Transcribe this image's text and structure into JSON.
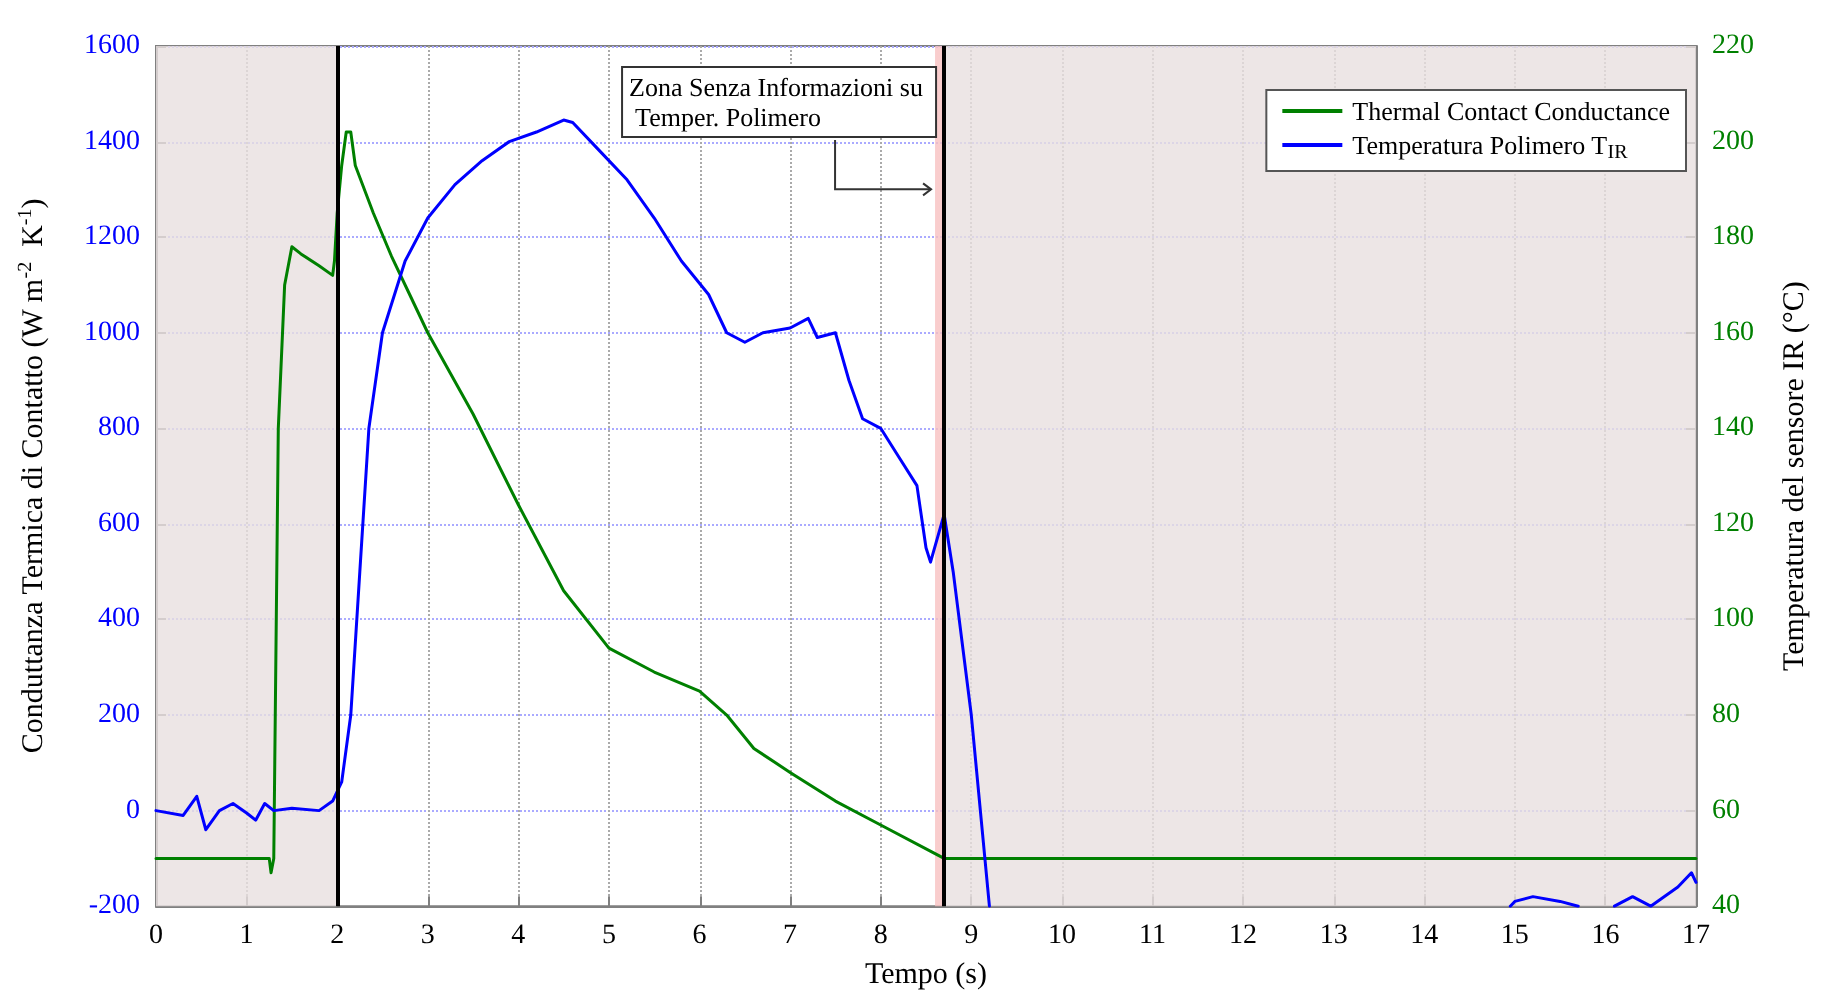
{
  "chart_data": {
    "type": "line",
    "xlabel": "Tempo (s)",
    "ylabel": "Conduttanza Termica di Contatto (W m$^{-2}$  K$^{-1}$)",
    "y2label": "Temperatura del sensore IR (°C)",
    "xlim": [
      0,
      17
    ],
    "xticks": [
      0,
      1,
      2,
      3,
      4,
      5,
      6,
      7,
      8,
      9,
      10,
      11,
      12,
      13,
      14,
      15,
      16,
      17
    ],
    "ylim": [
      -200,
      1600
    ],
    "yticks": [
      -200,
      0,
      200,
      400,
      600,
      800,
      1000,
      1200,
      1400,
      1600
    ],
    "y2lim": [
      40,
      220
    ],
    "y2ticks": [
      40,
      60,
      80,
      100,
      120,
      140,
      160,
      180,
      200,
      220
    ],
    "grid": true,
    "legend": "top right",
    "marker": "none",
    "line_style": "solid",
    "series": [
      {
        "name": "Thermal Contact Conductance",
        "color": "#008000",
        "axis": "y",
        "x": [
          0,
          1.25,
          1.27,
          1.3,
          1.35,
          1.42,
          1.5,
          1.6,
          1.8,
          1.95,
          1.97,
          2.0,
          2.05,
          2.1,
          2.15,
          2.2,
          2.4,
          2.6,
          2.8,
          3.0,
          3.5,
          4.0,
          4.5,
          5.0,
          5.5,
          6.0,
          6.3,
          6.6,
          7.0,
          7.5,
          8.0,
          8.6,
          8.7,
          17
        ],
        "values": [
          -100,
          -100,
          -130,
          -100,
          800,
          1100,
          1180,
          1165,
          1140,
          1120,
          1150,
          1250,
          1350,
          1420,
          1420,
          1350,
          1250,
          1160,
          1080,
          1000,
          830,
          640,
          460,
          340,
          290,
          250,
          200,
          130,
          80,
          20,
          -30,
          -90,
          -100,
          -100
        ]
      },
      {
        "name": "Temperatura Polimero T$_{IR}$",
        "color": "#0000ff",
        "axis": "y2",
        "x": [
          0,
          0.3,
          0.45,
          0.55,
          0.7,
          0.85,
          1.0,
          1.1,
          1.2,
          1.3,
          1.5,
          1.8,
          1.95,
          2.05,
          2.15,
          2.25,
          2.35,
          2.5,
          2.75,
          3.0,
          3.3,
          3.6,
          3.9,
          4.2,
          4.5,
          4.6,
          4.9,
          5.2,
          5.5,
          5.8,
          6.1,
          6.3,
          6.5,
          6.7,
          7.0,
          7.2,
          7.3,
          7.5,
          7.65,
          7.8,
          8.0,
          8.2,
          8.4,
          8.5,
          8.55,
          8.7,
          8.8,
          9.0,
          9.2,
          9.3,
          14.95,
          15.0,
          15.2,
          15.5,
          15.7,
          16.0,
          16.1,
          16.3,
          16.5,
          16.8,
          16.95,
          17
        ],
        "values": [
          60,
          59,
          63,
          56,
          60,
          61.5,
          59.5,
          58,
          61.5,
          60,
          60.5,
          60,
          62,
          66,
          80,
          110,
          140,
          160,
          175,
          184,
          191,
          196,
          200,
          202,
          204.5,
          204,
          198,
          192,
          184,
          175,
          168,
          160,
          158,
          160,
          161,
          163,
          159,
          160,
          150,
          142,
          140,
          134,
          128,
          115,
          112,
          122,
          110,
          80,
          40,
          null,
          40,
          41,
          42,
          41,
          40,
          null,
          40,
          42,
          40,
          44,
          47,
          45
        ]
      }
    ],
    "bands": [
      {
        "axis": "x",
        "from": 0,
        "to": 2,
        "color": "#e8e0e0"
      },
      {
        "axis": "x",
        "from": 8.6,
        "to": 8.7,
        "color": "#f8c0c0"
      },
      {
        "axis": "x",
        "from": 8.7,
        "to": 17,
        "color": "#e8e0e0"
      }
    ],
    "ref_lines": [
      {
        "axis": "x",
        "value": 2,
        "color": "#000000"
      },
      {
        "axis": "x",
        "value": 8.7,
        "color": "#000000"
      }
    ],
    "annotations": [
      {
        "text": "Zona Senza Informazioni su Temper. Polimero",
        "x": 8.6,
        "y": 1300
      }
    ]
  }
}
